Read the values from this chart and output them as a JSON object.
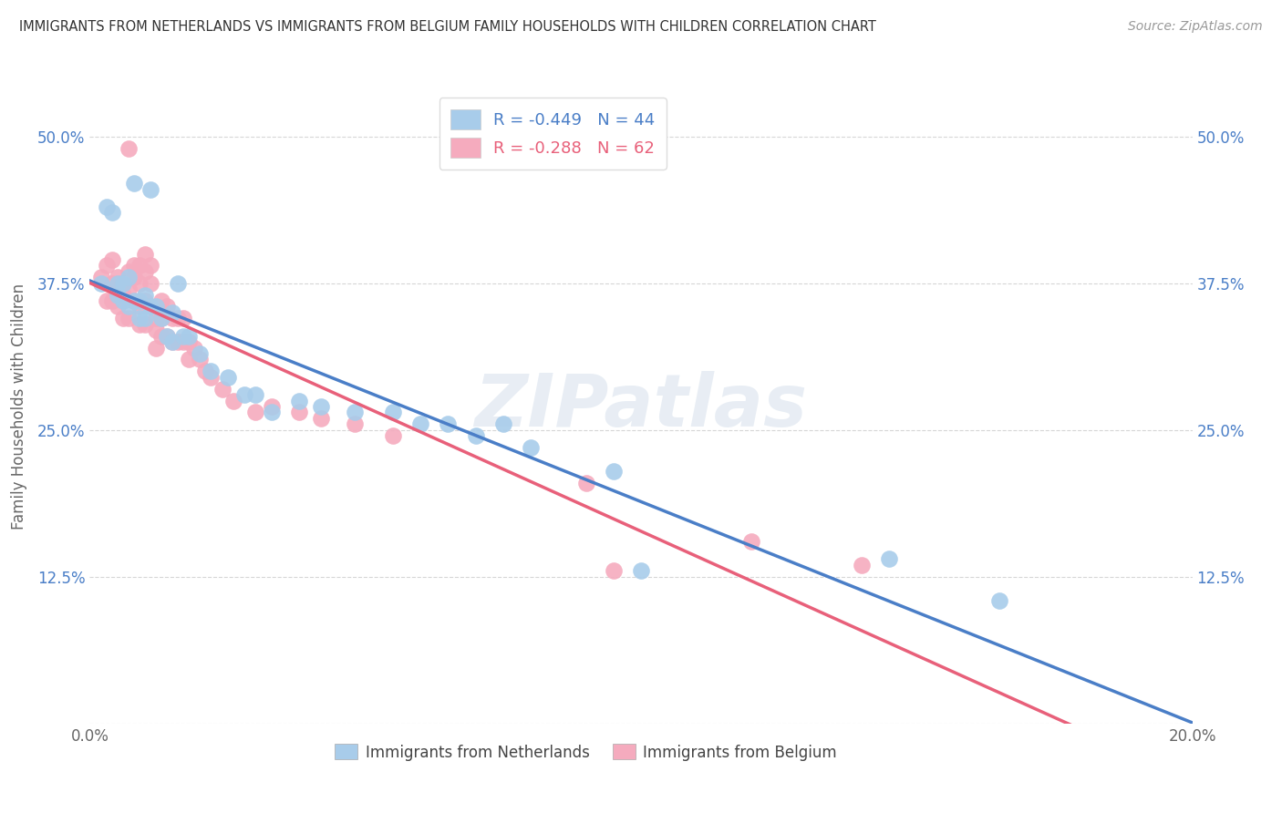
{
  "title": "IMMIGRANTS FROM NETHERLANDS VS IMMIGRANTS FROM BELGIUM FAMILY HOUSEHOLDS WITH CHILDREN CORRELATION CHART",
  "source": "Source: ZipAtlas.com",
  "ylabel": "Family Households with Children",
  "xlim": [
    0.0,
    0.2
  ],
  "ylim": [
    0.0,
    0.54
  ],
  "x_ticks": [
    0.0,
    0.025,
    0.05,
    0.075,
    0.1,
    0.125,
    0.15,
    0.175,
    0.2
  ],
  "y_ticks": [
    0.0,
    0.125,
    0.25,
    0.375,
    0.5
  ],
  "netherlands_color": "#A8CCEA",
  "belgium_color": "#F5ABBE",
  "netherlands_R": -0.449,
  "netherlands_N": 44,
  "belgium_R": -0.288,
  "belgium_N": 62,
  "netherlands_line_color": "#4A7EC7",
  "belgium_line_color": "#E8607A",
  "netherlands_x": [
    0.002,
    0.003,
    0.004,
    0.005,
    0.005,
    0.006,
    0.006,
    0.007,
    0.007,
    0.008,
    0.008,
    0.009,
    0.009,
    0.01,
    0.01,
    0.011,
    0.011,
    0.012,
    0.013,
    0.014,
    0.015,
    0.015,
    0.016,
    0.017,
    0.018,
    0.02,
    0.022,
    0.025,
    0.028,
    0.03,
    0.033,
    0.038,
    0.042,
    0.048,
    0.055,
    0.06,
    0.065,
    0.07,
    0.075,
    0.08,
    0.095,
    0.1,
    0.145,
    0.165
  ],
  "netherlands_y": [
    0.375,
    0.44,
    0.435,
    0.375,
    0.365,
    0.375,
    0.36,
    0.38,
    0.355,
    0.46,
    0.36,
    0.36,
    0.345,
    0.365,
    0.345,
    0.355,
    0.455,
    0.355,
    0.345,
    0.33,
    0.325,
    0.35,
    0.375,
    0.33,
    0.33,
    0.315,
    0.3,
    0.295,
    0.28,
    0.28,
    0.265,
    0.275,
    0.27,
    0.265,
    0.265,
    0.255,
    0.255,
    0.245,
    0.255,
    0.235,
    0.215,
    0.13,
    0.14,
    0.105
  ],
  "belgium_x": [
    0.002,
    0.003,
    0.003,
    0.004,
    0.004,
    0.004,
    0.005,
    0.005,
    0.005,
    0.006,
    0.006,
    0.006,
    0.007,
    0.007,
    0.007,
    0.007,
    0.008,
    0.008,
    0.008,
    0.009,
    0.009,
    0.009,
    0.009,
    0.01,
    0.01,
    0.01,
    0.01,
    0.011,
    0.011,
    0.011,
    0.012,
    0.012,
    0.012,
    0.013,
    0.013,
    0.013,
    0.014,
    0.014,
    0.015,
    0.015,
    0.016,
    0.016,
    0.017,
    0.017,
    0.018,
    0.018,
    0.019,
    0.02,
    0.021,
    0.022,
    0.024,
    0.026,
    0.03,
    0.033,
    0.038,
    0.042,
    0.048,
    0.055,
    0.09,
    0.095,
    0.12,
    0.14
  ],
  "belgium_y": [
    0.38,
    0.39,
    0.36,
    0.395,
    0.375,
    0.36,
    0.38,
    0.375,
    0.355,
    0.375,
    0.365,
    0.345,
    0.49,
    0.385,
    0.37,
    0.345,
    0.39,
    0.38,
    0.36,
    0.39,
    0.375,
    0.355,
    0.34,
    0.4,
    0.385,
    0.36,
    0.34,
    0.39,
    0.375,
    0.355,
    0.345,
    0.335,
    0.32,
    0.36,
    0.345,
    0.33,
    0.355,
    0.33,
    0.345,
    0.325,
    0.345,
    0.325,
    0.345,
    0.325,
    0.325,
    0.31,
    0.32,
    0.31,
    0.3,
    0.295,
    0.285,
    0.275,
    0.265,
    0.27,
    0.265,
    0.26,
    0.255,
    0.245,
    0.205,
    0.13,
    0.155,
    0.135
  ]
}
